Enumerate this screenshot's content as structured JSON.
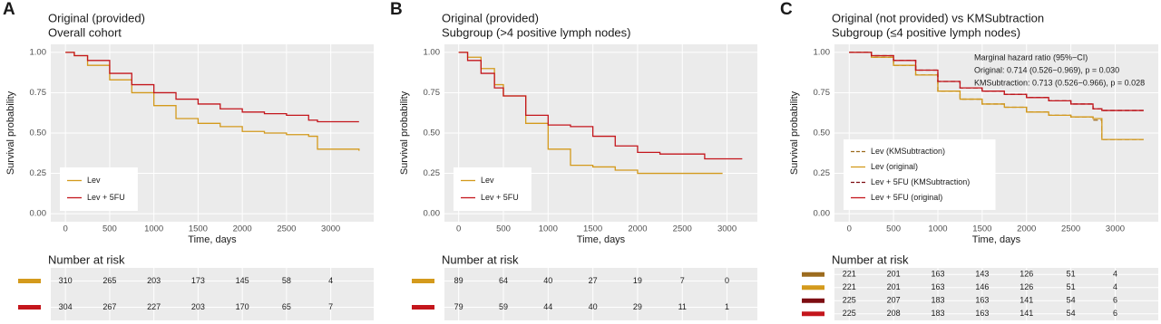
{
  "chart_data": [
    {
      "type": "line",
      "step": true,
      "panel_label": "A",
      "title": "Original (provided)",
      "subtitle": "Overall cohort",
      "xlabel": "Time, days",
      "ylabel": "Survival probability",
      "xlim": [
        -166,
        3486
      ],
      "ylim": [
        -0.05,
        1.05
      ],
      "xticks": [
        0,
        500,
        1000,
        1500,
        2000,
        2500,
        3000
      ],
      "yticks": [
        {
          "value": 0,
          "label": "0.00"
        },
        {
          "value": 0.25,
          "label": "0.25"
        },
        {
          "value": 0.5,
          "label": "0.50"
        },
        {
          "value": 0.75,
          "label": "0.75"
        },
        {
          "value": 1,
          "label": "1.00"
        }
      ],
      "grid": true,
      "legend_position": "bottom-left",
      "x": [
        0,
        100,
        250,
        500,
        750,
        1000,
        1250,
        1500,
        1750,
        2000,
        2250,
        2500,
        2750,
        2850,
        3320
      ],
      "series": [
        {
          "name": "Lev",
          "color": "#d49a1c",
          "values": [
            1,
            0.98,
            0.92,
            0.83,
            0.75,
            0.67,
            0.59,
            0.56,
            0.54,
            0.51,
            0.5,
            0.49,
            0.48,
            0.4,
            0.39
          ]
        },
        {
          "name": "Lev + 5FU",
          "color": "#c4161c",
          "values": [
            1,
            0.98,
            0.95,
            0.87,
            0.8,
            0.75,
            0.71,
            0.68,
            0.65,
            0.63,
            0.62,
            0.61,
            0.58,
            0.57,
            0.57
          ]
        }
      ],
      "risk_table": {
        "title": "Number at risk",
        "rows": [
          {
            "color": "#d49a1c",
            "values": [
              310,
              265,
              203,
              173,
              145,
              58,
              4
            ]
          },
          {
            "color": "#c4161c",
            "values": [
              304,
              267,
              227,
              203,
              170,
              65,
              7
            ]
          }
        ]
      }
    },
    {
      "type": "line",
      "step": true,
      "panel_label": "B",
      "title": "Original (provided)",
      "subtitle": "Subgroup (>4 positive lymph nodes)",
      "xlabel": "Time, days",
      "ylabel": "Survival probability",
      "xlim": [
        -159,
        3339
      ],
      "ylim": [
        -0.05,
        1.05
      ],
      "xticks": [
        0,
        500,
        1000,
        1500,
        2000,
        2500,
        3000
      ],
      "yticks": [
        {
          "value": 0,
          "label": "0.00"
        },
        {
          "value": 0.25,
          "label": "0.25"
        },
        {
          "value": 0.5,
          "label": "0.50"
        },
        {
          "value": 0.75,
          "label": "0.75"
        },
        {
          "value": 1,
          "label": "1.00"
        }
      ],
      "grid": true,
      "legend_position": "bottom-left",
      "x": [
        0,
        100,
        250,
        400,
        500,
        750,
        1000,
        1250,
        1500,
        1750,
        2000,
        2250,
        2500,
        2750,
        2950,
        3170
      ],
      "series": [
        {
          "name": "Lev",
          "color": "#d49a1c",
          "values": [
            1,
            0.97,
            0.9,
            0.8,
            0.73,
            0.56,
            0.4,
            0.3,
            0.29,
            0.27,
            0.25,
            0.25,
            0.25,
            0.25,
            0.25,
            null
          ]
        },
        {
          "name": "Lev + 5FU",
          "color": "#c4161c",
          "values": [
            1,
            0.95,
            0.87,
            0.78,
            0.73,
            0.61,
            0.55,
            0.54,
            0.48,
            0.42,
            0.38,
            0.37,
            0.37,
            0.34,
            0.34,
            0.34
          ]
        }
      ],
      "risk_table": {
        "title": "Number at risk",
        "rows": [
          {
            "color": "#d49a1c",
            "values": [
              89,
              64,
              40,
              27,
              19,
              7,
              0
            ]
          },
          {
            "color": "#c4161c",
            "values": [
              79,
              59,
              44,
              40,
              29,
              11,
              1
            ]
          }
        ]
      }
    },
    {
      "type": "line",
      "step": true,
      "panel_label": "C",
      "title": "Original (not provided) vs KMSubtraction",
      "subtitle": "Subgroup (≤4 positive lymph nodes)",
      "xlabel": "Time, days",
      "ylabel": "Survival probability",
      "xlim": [
        -166,
        3486
      ],
      "ylim": [
        -0.05,
        1.05
      ],
      "xticks": [
        0,
        500,
        1000,
        1500,
        2000,
        2500,
        3000
      ],
      "yticks": [
        {
          "value": 0,
          "label": "0.00"
        },
        {
          "value": 0.25,
          "label": "0.25"
        },
        {
          "value": 0.5,
          "label": "0.50"
        },
        {
          "value": 0.75,
          "label": "0.75"
        },
        {
          "value": 1,
          "label": "1.00"
        }
      ],
      "grid": true,
      "legend_position": "left",
      "annotations": [
        "Marginal hazard ratio (95%−CI)",
        "Original: 0.714 (0.526−0.969), p = 0.030",
        "KMSubtraction: 0.713 (0.526−0.966), p = 0.028"
      ],
      "x": [
        0,
        250,
        500,
        750,
        1000,
        1250,
        1500,
        1750,
        2000,
        2250,
        2500,
        2750,
        2850,
        3320
      ],
      "series": [
        {
          "name": "Lev (KMSubtraction)",
          "color": "#9c6b1e",
          "dash": true,
          "values": [
            1,
            0.97,
            0.92,
            0.86,
            0.76,
            0.71,
            0.68,
            0.66,
            0.63,
            0.61,
            0.6,
            0.58,
            0.46,
            0.46
          ]
        },
        {
          "name": "Lev (original)",
          "color": "#d49a1c",
          "values": [
            1,
            0.97,
            0.92,
            0.86,
            0.76,
            0.71,
            0.68,
            0.66,
            0.63,
            0.61,
            0.6,
            0.59,
            0.46,
            0.46
          ]
        },
        {
          "name": "Lev + 5FU (KMSubtraction)",
          "color": "#7d0d12",
          "dash": true,
          "values": [
            1,
            0.98,
            0.95,
            0.89,
            0.82,
            0.78,
            0.76,
            0.74,
            0.72,
            0.7,
            0.68,
            0.65,
            0.64,
            0.64
          ]
        },
        {
          "name": "Lev + 5FU (original)",
          "color": "#c4161c",
          "values": [
            1,
            0.98,
            0.95,
            0.89,
            0.82,
            0.78,
            0.76,
            0.74,
            0.72,
            0.7,
            0.68,
            0.65,
            0.64,
            0.64
          ]
        }
      ],
      "risk_table": {
        "title": "Number at risk",
        "rows": [
          {
            "color": "#9c6b1e",
            "values": [
              221,
              201,
              163,
              143,
              126,
              51,
              4
            ]
          },
          {
            "color": "#d49a1c",
            "values": [
              221,
              201,
              163,
              146,
              126,
              51,
              4
            ]
          },
          {
            "color": "#7d0d12",
            "values": [
              225,
              207,
              183,
              163,
              141,
              54,
              6
            ]
          },
          {
            "color": "#c4161c",
            "values": [
              225,
              208,
              183,
              163,
              141,
              54,
              6
            ]
          }
        ]
      }
    }
  ]
}
